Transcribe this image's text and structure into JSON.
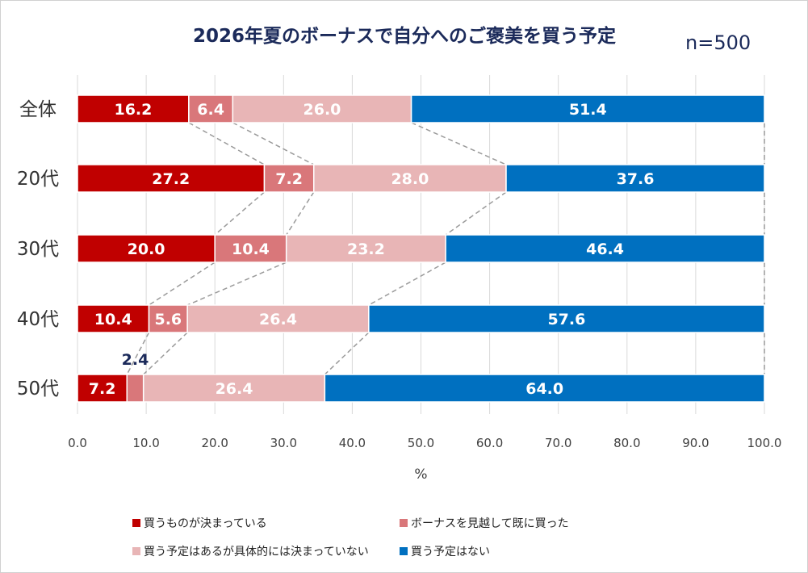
{
  "chart_data": {
    "type": "bar",
    "orientation": "horizontal",
    "stacked": true,
    "title": "2026年夏のボーナスで自分へのご褒美を買う予定",
    "sample_label": "n=500",
    "categories": [
      "全体",
      "20代",
      "30代",
      "40代",
      "50代"
    ],
    "series": [
      {
        "name": "買うものが決まっている",
        "color": "#c00000",
        "values": [
          16.2,
          27.2,
          20.0,
          10.4,
          7.2
        ],
        "labels": [
          "16.2",
          "27.2",
          "20.0",
          "10.4",
          "7.2"
        ]
      },
      {
        "name": "ボーナスを見越して既に買った",
        "color": "#d9777a",
        "values": [
          6.4,
          7.2,
          10.4,
          5.6,
          2.4
        ],
        "labels": [
          "6.4",
          "7.2",
          "10.4",
          "5.6",
          "2.4"
        ]
      },
      {
        "name": "買う予定はあるが具体的には決まっていない",
        "color": "#e8b5b6",
        "values": [
          26.0,
          28.0,
          23.2,
          26.4,
          26.4
        ],
        "labels": [
          "26.0",
          "28.0",
          "23.2",
          "26.4",
          "26.4"
        ]
      },
      {
        "name": "買う予定はない",
        "color": "#0070c0",
        "values": [
          51.4,
          37.6,
          46.4,
          57.6,
          64.0
        ],
        "labels": [
          "51.4",
          "37.6",
          "46.4",
          "57.6",
          "64.0"
        ]
      }
    ],
    "xlim": [
      0,
      100
    ],
    "xticks": [
      "0.0",
      "10.0",
      "20.0",
      "30.0",
      "40.0",
      "50.0",
      "60.0",
      "70.0",
      "80.0",
      "90.0",
      "100.0"
    ],
    "xlabel": "%",
    "grid": "vertical",
    "legend_position": "bottom",
    "series_lines": "dashed"
  }
}
